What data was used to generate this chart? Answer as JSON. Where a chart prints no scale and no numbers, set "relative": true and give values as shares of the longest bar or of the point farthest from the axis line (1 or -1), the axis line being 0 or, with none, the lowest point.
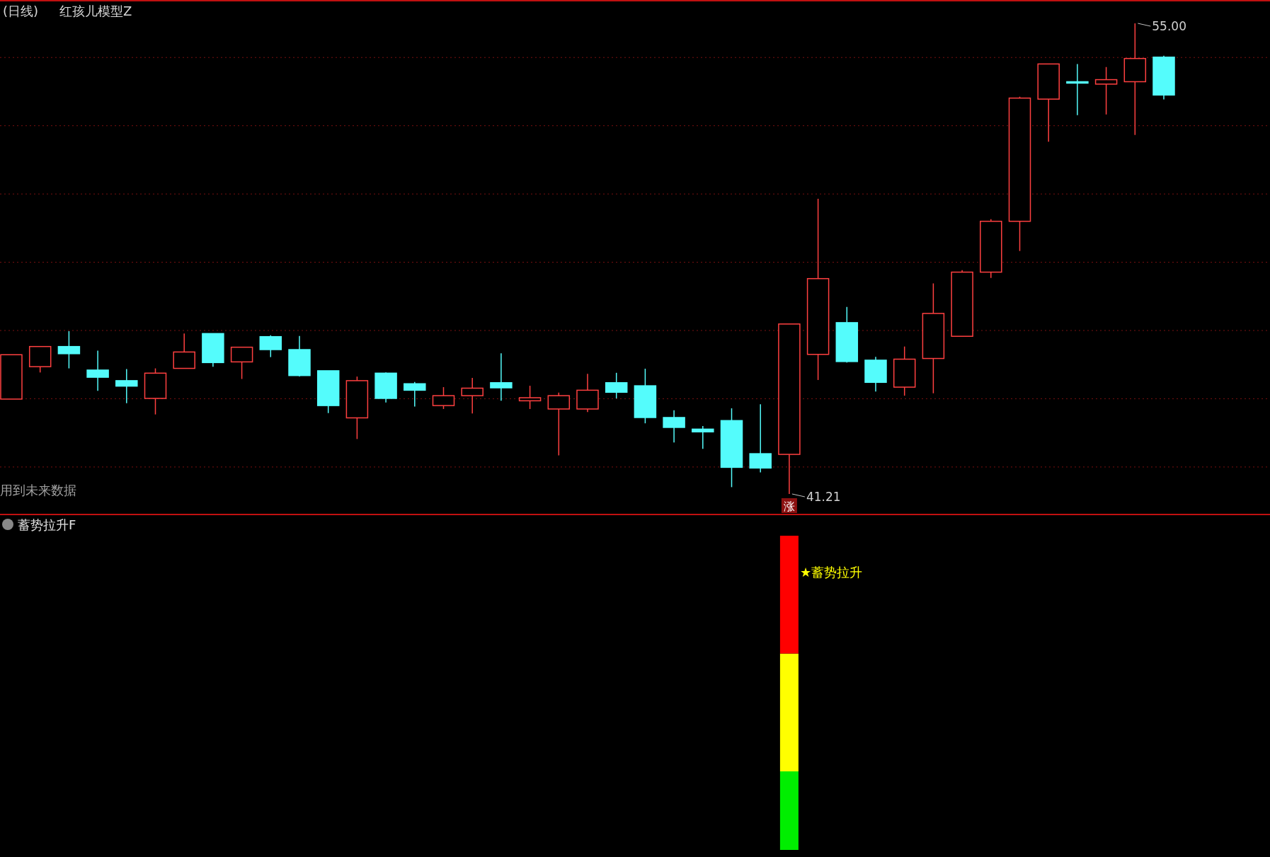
{
  "chart_data": [
    {
      "type": "candlestick",
      "title": "(日线)",
      "subtitle": "红孩儿模型Z",
      "grid": true,
      "categories": [
        null,
        null,
        null,
        null,
        null,
        null,
        null,
        null,
        null,
        null,
        null,
        null,
        null,
        null,
        null,
        null,
        null,
        null,
        null,
        null,
        null,
        null,
        null,
        null,
        null,
        null,
        null,
        null,
        null,
        null,
        null,
        null,
        null,
        null,
        null,
        null,
        null,
        null,
        null,
        null,
        null
      ],
      "ohlc": [
        [
          43.99,
          45.29,
          43.99,
          45.29
        ],
        [
          44.94,
          45.53,
          44.77,
          45.53
        ],
        [
          45.53,
          45.98,
          44.89,
          45.32
        ],
        [
          44.84,
          45.41,
          44.23,
          44.63
        ],
        [
          44.53,
          44.87,
          43.87,
          44.37
        ],
        [
          44.01,
          44.89,
          43.54,
          44.75
        ],
        [
          44.89,
          45.91,
          44.89,
          45.37
        ],
        [
          45.91,
          45.91,
          44.94,
          45.06
        ],
        [
          45.08,
          45.51,
          44.58,
          45.51
        ],
        [
          45.82,
          45.86,
          45.22,
          45.44
        ],
        [
          45.44,
          45.84,
          44.65,
          44.68
        ],
        [
          44.82,
          44.82,
          43.58,
          43.8
        ],
        [
          43.44,
          44.65,
          42.82,
          44.53
        ],
        [
          44.75,
          44.77,
          43.89,
          44.01
        ],
        [
          44.44,
          44.49,
          43.77,
          44.25
        ],
        [
          43.8,
          44.34,
          43.7,
          44.09
        ],
        [
          44.09,
          44.61,
          43.57,
          44.31
        ],
        [
          44.47,
          45.33,
          43.94,
          44.32
        ],
        [
          43.94,
          44.38,
          43.7,
          44.03
        ],
        [
          43.7,
          44.18,
          42.34,
          44.09
        ],
        [
          43.7,
          44.73,
          43.61,
          44.25
        ],
        [
          44.47,
          44.76,
          44.01,
          44.19
        ],
        [
          44.38,
          44.88,
          43.28,
          43.45
        ],
        [
          43.45,
          43.66,
          42.72,
          43.16
        ],
        [
          43.11,
          43.2,
          42.53,
          43.03
        ],
        [
          43.36,
          43.72,
          41.41,
          41.99
        ],
        [
          42.39,
          43.84,
          41.84,
          41.97
        ],
        [
          42.37,
          46.19,
          41.21,
          46.19
        ],
        [
          45.3,
          49.86,
          44.55,
          47.52
        ],
        [
          46.23,
          46.69,
          45.06,
          45.09
        ],
        [
          45.13,
          45.23,
          44.21,
          44.48
        ],
        [
          44.34,
          45.53,
          44.09,
          45.16
        ],
        [
          45.18,
          47.38,
          44.16,
          46.5
        ],
        [
          45.83,
          47.77,
          45.83,
          47.71
        ],
        [
          47.71,
          49.26,
          47.54,
          49.2
        ],
        [
          49.2,
          52.85,
          48.33,
          52.81
        ],
        [
          52.78,
          53.81,
          51.53,
          53.81
        ],
        [
          53.29,
          53.81,
          52.31,
          53.25
        ],
        [
          53.22,
          53.72,
          52.33,
          53.35
        ],
        [
          53.29,
          55.0,
          51.73,
          53.97
        ],
        [
          54.01,
          54.05,
          52.77,
          52.9
        ]
      ],
      "colors": [
        "#ff4040",
        "#ff4040",
        "#54fcfc",
        "#54fcfc",
        "#54fcfc",
        "#ff4040",
        "#ff4040",
        "#54fcfc",
        "#ff4040",
        "#54fcfc",
        "#54fcfc",
        "#54fcfc",
        "#ff4040",
        "#54fcfc",
        "#54fcfc",
        "#ff4040",
        "#ff4040",
        "#54fcfc",
        "#ff4040",
        "#ff4040",
        "#ff4040",
        "#54fcfc",
        "#54fcfc",
        "#54fcfc",
        "#54fcfc",
        "#54fcfc",
        "#54fcfc",
        "#ff4040",
        "#ff4040",
        "#54fcfc",
        "#54fcfc",
        "#ff4040",
        "#ff4040",
        "#ff4040",
        "#ff4040",
        "#ff4040",
        "#ff4040",
        "#54fcfc",
        "#ff4040",
        "#ff4040",
        "#54fcfc"
      ],
      "yticks": [
        {
          "value": 54,
          "label": null
        },
        {
          "value": 52,
          "label": null
        },
        {
          "value": 50,
          "label": null
        },
        {
          "value": 48,
          "label": null
        },
        {
          "value": 46,
          "label": null
        },
        {
          "value": 44,
          "label": null
        },
        {
          "value": 42,
          "label": null
        }
      ],
      "annotations": [
        "用到未来数据",
        "55.00",
        "41.21",
        "涨"
      ]
    },
    {
      "type": "bar",
      "title": "蓄势拉升F",
      "stacked": true,
      "relative": true,
      "categories": [
        null,
        null,
        null,
        null,
        null,
        null,
        null,
        null,
        null,
        null,
        null,
        null,
        null,
        null,
        null,
        null,
        null,
        null,
        null,
        null,
        null,
        null,
        null,
        null,
        null,
        null,
        null,
        null,
        null,
        null,
        null,
        null,
        null,
        null,
        null,
        null,
        null,
        null,
        null,
        null,
        null
      ],
      "series": [
        {
          "color": "#00ee00",
          "values": [
            null,
            null,
            null,
            null,
            null,
            null,
            null,
            null,
            null,
            null,
            null,
            null,
            null,
            null,
            null,
            null,
            null,
            null,
            null,
            null,
            null,
            null,
            null,
            null,
            null,
            null,
            null,
            0.25,
            null,
            null,
            null,
            null,
            null,
            null,
            null,
            null,
            null,
            null,
            null,
            null,
            null
          ]
        },
        {
          "color": "#ffff00",
          "values": [
            null,
            null,
            null,
            null,
            null,
            null,
            null,
            null,
            null,
            null,
            null,
            null,
            null,
            null,
            null,
            null,
            null,
            null,
            null,
            null,
            null,
            null,
            null,
            null,
            null,
            null,
            null,
            0.375,
            null,
            null,
            null,
            null,
            null,
            null,
            null,
            null,
            null,
            null,
            null,
            null,
            null
          ]
        },
        {
          "color": "#ff0000",
          "values": [
            null,
            null,
            null,
            null,
            null,
            null,
            null,
            null,
            null,
            null,
            null,
            null,
            null,
            null,
            null,
            null,
            null,
            null,
            null,
            null,
            null,
            null,
            null,
            null,
            null,
            null,
            null,
            0.375,
            null,
            null,
            null,
            null,
            null,
            null,
            null,
            null,
            null,
            null,
            null,
            null,
            null
          ]
        }
      ],
      "annotations": [
        "★蓄势拉升"
      ]
    }
  ]
}
